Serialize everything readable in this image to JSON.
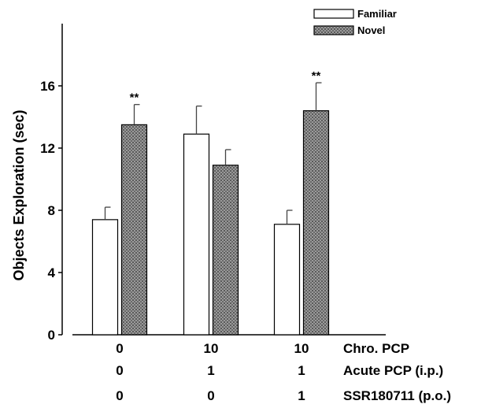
{
  "chart_data": {
    "type": "bar",
    "ylabel": "Objects Exploration (sec)",
    "xlabel": "",
    "title": "",
    "ylim": [
      0,
      20
    ],
    "yticks": [
      "0",
      "4",
      "8",
      "12",
      "16"
    ],
    "legend_position": "top-right",
    "categories": [
      "0 / 0 / 0",
      "10 / 1 / 0",
      "10 / 1 / 1"
    ],
    "series": [
      {
        "name": "Familiar",
        "values": [
          7.4,
          12.9,
          7.1
        ],
        "errors": [
          0.8,
          1.8,
          0.9
        ],
        "color": "#ffffff"
      },
      {
        "name": "Novel",
        "values": [
          13.5,
          10.9,
          14.4
        ],
        "errors": [
          1.3,
          1.0,
          1.8
        ],
        "color": "#8c8c8c"
      }
    ],
    "annotations": [
      {
        "text": "**",
        "category": 0,
        "series": 1
      },
      {
        "text": "**",
        "category": 2,
        "series": 1
      }
    ],
    "treatment_rows": [
      {
        "label": "Chro. PCP",
        "values": [
          "0",
          "10",
          "10"
        ]
      },
      {
        "label": "Acute PCP (i.p.)",
        "values": [
          "0",
          "1",
          "1"
        ]
      },
      {
        "label": "SSR180711 (p.o.)",
        "values": [
          "0",
          "0",
          "1"
        ]
      }
    ]
  }
}
